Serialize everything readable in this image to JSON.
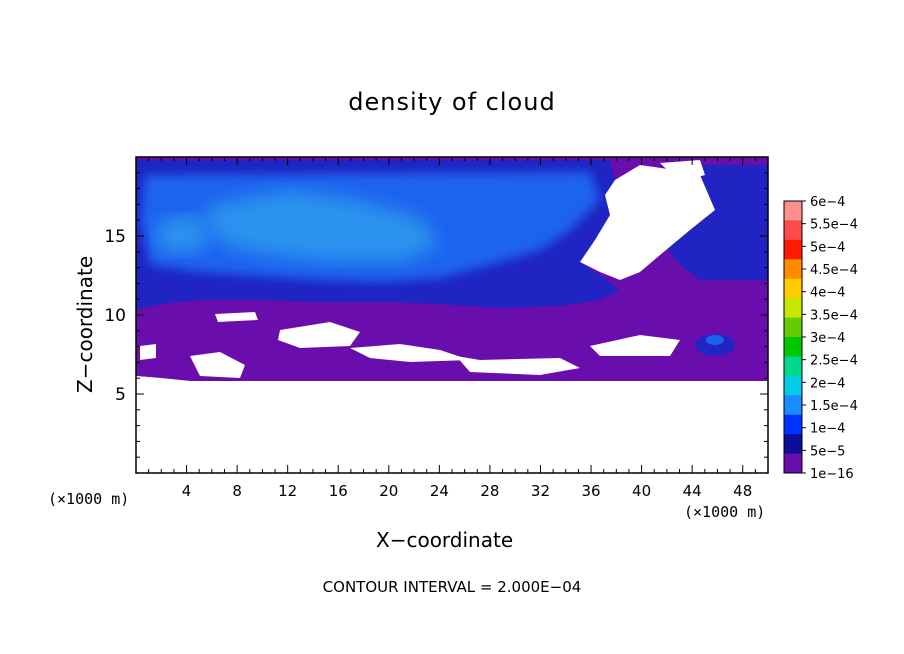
{
  "chart_data": {
    "type": "heatmap",
    "title": "density of cloud",
    "xlabel": "X−coordinate",
    "ylabel": "Z−coordinate",
    "x_unit_left": "(×1000 m)",
    "x_unit_right": "(×1000 m)",
    "footer": "CONTOUR INTERVAL = 2.000E−04",
    "xlim": [
      0,
      50
    ],
    "ylim": [
      0,
      20
    ],
    "x_ticks": [
      4,
      8,
      12,
      16,
      20,
      24,
      28,
      32,
      36,
      40,
      44,
      48
    ],
    "y_ticks": [
      5,
      10,
      15
    ],
    "colorbar": {
      "labels": [
        "6e−4",
        "5.5e−4",
        "5e−4",
        "4.5e−4",
        "4e−4",
        "3.5e−4",
        "3e−4",
        "2.5e−4",
        "2e−4",
        "1.5e−4",
        "1e−4",
        "5e−5",
        "1e−16"
      ],
      "colors": [
        "#ff8e8e",
        "#ff4a4a",
        "#ff1a00",
        "#ff8a00",
        "#ffcc00",
        "#c8e600",
        "#66cc00",
        "#00c800",
        "#00d98c",
        "#00cce6",
        "#1a8cff",
        "#0033ff",
        "#0d0d99",
        "#6a0dad"
      ]
    },
    "cloud_layers": [
      {
        "level": "1e−16",
        "color": "#6a0dad",
        "z_range": [
          6.0,
          19.8
        ]
      },
      {
        "level": "5e−5",
        "color": "#2020c0",
        "z_range": [
          10.5,
          19.8
        ]
      },
      {
        "level": "1e−4",
        "color": "#1a60f0",
        "z_range": [
          12.5,
          18.5
        ]
      },
      {
        "level": "1.5e−4",
        "color": "#2090ee",
        "z_range": [
          13.5,
          17.2
        ]
      }
    ]
  }
}
